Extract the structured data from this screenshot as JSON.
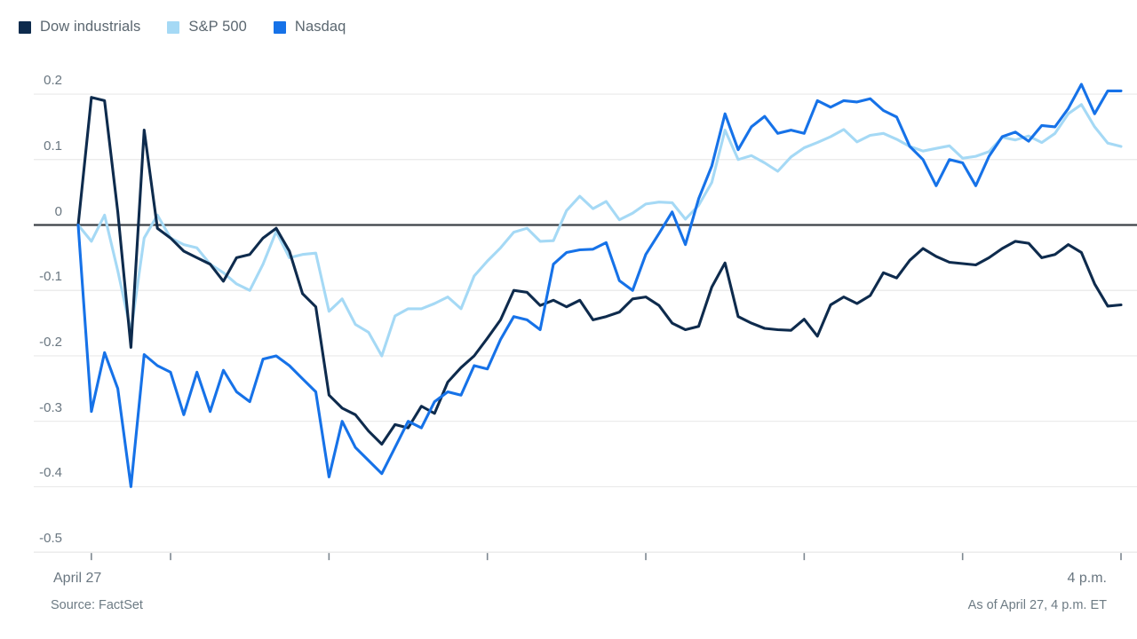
{
  "legend": {
    "items": [
      {
        "label": "Dow industrials",
        "color": "#0e2b4d"
      },
      {
        "label": "S&P 500",
        "color": "#a5d9f5"
      },
      {
        "label": "Nasdaq",
        "color": "#1672e8"
      }
    ]
  },
  "chart_data": {
    "type": "line",
    "title": "",
    "xlabel": "",
    "ylabel": "",
    "grid": true,
    "legend_position": "top-left",
    "x_axis": {
      "start_label": "April 27",
      "end_label": "4 p.m.",
      "start_hour": 9.416667,
      "end_hour": 16,
      "tick_hours": [
        9.5,
        10,
        11,
        12,
        13,
        14,
        15,
        16
      ],
      "interval_minutes": 5
    },
    "y_axis": {
      "ticks": [
        0.2,
        0.1,
        0,
        -0.1,
        -0.2,
        -0.3,
        -0.4,
        -0.5
      ],
      "tick_labels": [
        "0.2",
        "0.1",
        "0",
        "-0.1",
        "-0.2",
        "-0.3",
        "-0.4",
        "-0.5"
      ],
      "range": [
        -0.5,
        0.2
      ],
      "zero_line": true
    },
    "series": [
      {
        "name": "Dow industrials",
        "color": "#0e2b4d",
        "values": [
          0,
          0.195,
          0.19,
          0.02,
          -0.187,
          0.145,
          -0.005,
          -0.02,
          -0.04,
          -0.05,
          -0.06,
          -0.086,
          -0.05,
          -0.045,
          -0.02,
          -0.005,
          -0.04,
          -0.105,
          -0.125,
          -0.26,
          -0.28,
          -0.29,
          -0.315,
          -0.335,
          -0.305,
          -0.31,
          -0.277,
          -0.288,
          -0.24,
          -0.218,
          -0.2,
          -0.173,
          -0.145,
          -0.1,
          -0.103,
          -0.123,
          -0.115,
          -0.125,
          -0.115,
          -0.145,
          -0.14,
          -0.133,
          -0.113,
          -0.11,
          -0.123,
          -0.15,
          -0.16,
          -0.155,
          -0.095,
          -0.058,
          -0.14,
          -0.15,
          -0.158,
          -0.16,
          -0.161,
          -0.144,
          -0.17,
          -0.122,
          -0.11,
          -0.12,
          -0.108,
          -0.073,
          -0.081,
          -0.054,
          -0.036,
          -0.048,
          -0.057,
          -0.059,
          -0.061,
          -0.05,
          -0.036,
          -0.025,
          -0.028,
          -0.05,
          -0.045,
          -0.03,
          -0.042,
          -0.09,
          -0.124,
          -0.122
        ]
      },
      {
        "name": "S&P 500",
        "color": "#a5d9f5",
        "values": [
          0,
          -0.025,
          0.015,
          -0.07,
          -0.163,
          -0.02,
          0.015,
          -0.02,
          -0.03,
          -0.035,
          -0.06,
          -0.073,
          -0.09,
          -0.1,
          -0.06,
          -0.01,
          -0.05,
          -0.045,
          -0.043,
          -0.132,
          -0.113,
          -0.152,
          -0.164,
          -0.2,
          -0.139,
          -0.128,
          -0.128,
          -0.12,
          -0.11,
          -0.128,
          -0.078,
          -0.055,
          -0.035,
          -0.011,
          -0.005,
          -0.025,
          -0.024,
          0.022,
          0.044,
          0.025,
          0.036,
          0.008,
          0.018,
          0.032,
          0.035,
          0.034,
          0.009,
          0.03,
          0.065,
          0.145,
          0.1,
          0.106,
          0.095,
          0.082,
          0.104,
          0.118,
          0.126,
          0.135,
          0.146,
          0.127,
          0.137,
          0.14,
          0.131,
          0.12,
          0.113,
          0.117,
          0.121,
          0.102,
          0.105,
          0.112,
          0.134,
          0.13,
          0.136,
          0.126,
          0.14,
          0.17,
          0.184,
          0.15,
          0.125,
          0.12
        ]
      },
      {
        "name": "Nasdaq",
        "color": "#1672e8",
        "values": [
          0,
          -0.285,
          -0.195,
          -0.25,
          -0.4,
          -0.198,
          -0.215,
          -0.225,
          -0.29,
          -0.225,
          -0.285,
          -0.222,
          -0.255,
          -0.27,
          -0.205,
          -0.2,
          -0.215,
          -0.235,
          -0.255,
          -0.385,
          -0.3,
          -0.34,
          -0.36,
          -0.38,
          -0.34,
          -0.3,
          -0.31,
          -0.27,
          -0.255,
          -0.26,
          -0.215,
          -0.22,
          -0.175,
          -0.14,
          -0.145,
          -0.16,
          -0.06,
          -0.042,
          -0.038,
          -0.037,
          -0.027,
          -0.085,
          -0.1,
          -0.045,
          -0.013,
          0.02,
          -0.03,
          0.04,
          0.09,
          0.17,
          0.115,
          0.15,
          0.166,
          0.14,
          0.145,
          0.14,
          0.19,
          0.18,
          0.19,
          0.188,
          0.193,
          0.175,
          0.165,
          0.12,
          0.1,
          0.06,
          0.1,
          0.095,
          0.06,
          0.105,
          0.135,
          0.142,
          0.128,
          0.152,
          0.15,
          0.178,
          0.215,
          0.17,
          0.205,
          0.205
        ]
      }
    ]
  },
  "footer": {
    "source": "Source: FactSet",
    "as_of": "As of April 27, 4 p.m. ET"
  },
  "style": {
    "background": "#ffffff",
    "grid_color": "#e9e9e9",
    "axis_line_color": "#d9dcde",
    "zero_line_color": "#3c4247",
    "tick_color": "#7d8790",
    "axis_text_color": "#697680",
    "legend_text_color": "#5b6770"
  }
}
